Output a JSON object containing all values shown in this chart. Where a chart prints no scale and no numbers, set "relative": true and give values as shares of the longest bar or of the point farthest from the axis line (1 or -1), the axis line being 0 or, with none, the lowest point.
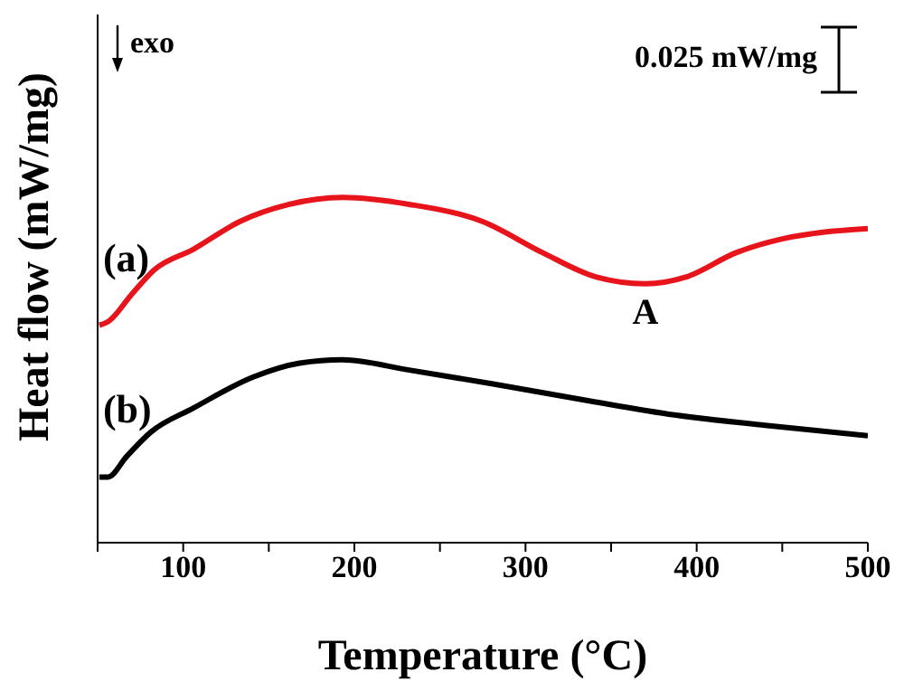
{
  "chart_data": {
    "type": "line",
    "xlabel": "Temperature (°C)",
    "ylabel": "Heat flow (mW/mg)",
    "relative": true,
    "xlim": [
      50,
      500
    ],
    "xticks": [
      {
        "value": 50,
        "label": null
      },
      100,
      {
        "value": 150,
        "label": null
      },
      200,
      {
        "value": 250,
        "label": null
      },
      300,
      {
        "value": 350,
        "label": null
      },
      400,
      {
        "value": 450,
        "label": null
      },
      500
    ],
    "series": [
      {
        "name": "(a)",
        "color": "#e8141c",
        "x": [
          51,
          56,
          70,
          83,
          106,
          133,
          162,
          193,
          232,
          275,
          310,
          341,
          370,
          394,
          423,
          450,
          475,
          500
        ],
        "values": [
          0.63,
          0.64,
          0.72,
          0.79,
          0.85,
          0.93,
          0.98,
          1.0,
          0.98,
          0.93,
          0.84,
          0.77,
          0.75,
          0.77,
          0.84,
          0.88,
          0.9,
          0.91
        ]
      },
      {
        "name": "(b)",
        "color": "#000000",
        "x": [
          51,
          56,
          67,
          81,
          106,
          141,
          168,
          193,
          232,
          281,
          338,
          387,
          440,
          500
        ],
        "values": [
          0.19,
          0.19,
          0.25,
          0.32,
          0.39,
          0.48,
          0.52,
          0.53,
          0.5,
          0.46,
          0.41,
          0.37,
          0.34,
          0.31
        ]
      }
    ],
    "annotations": [
      {
        "text": "A",
        "x": 370,
        "y": 0.75
      },
      "exo",
      "0.025 mW/mg"
    ],
    "grid": false,
    "legend": false,
    "marker": "none",
    "line_style": "solid"
  }
}
